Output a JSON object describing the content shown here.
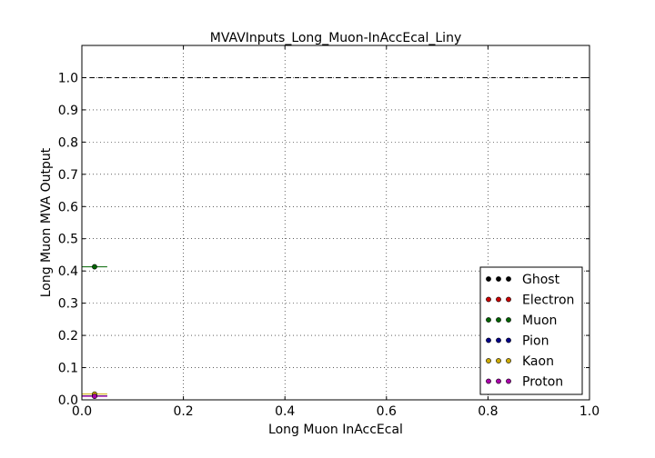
{
  "chart_data": {
    "type": "scatter",
    "title": "MVAVInputs_Long_Muon-InAccEcal_Liny",
    "xlabel": "Long Muon InAccEcal",
    "ylabel": "Long Muon MVA Output",
    "xlim": [
      0.0,
      1.0
    ],
    "ylim": [
      0.0,
      1.1
    ],
    "x_ticks": [
      "0.0",
      "0.2",
      "0.4",
      "0.6",
      "0.8",
      "1.0"
    ],
    "y_ticks": [
      "0.0",
      "0.1",
      "0.2",
      "0.3",
      "0.4",
      "0.5",
      "0.6",
      "0.7",
      "0.8",
      "0.9",
      "1.0"
    ],
    "grid": true,
    "reference_line": {
      "y": 1.0,
      "style": "dashed"
    },
    "legend_position": "lower-right",
    "series": [
      {
        "name": "Ghost",
        "color": "#000000",
        "points": []
      },
      {
        "name": "Electron",
        "color": "#cc0000",
        "points": [
          {
            "x": 0.025,
            "y": 0.012,
            "xerr": 0.025
          }
        ]
      },
      {
        "name": "Muon",
        "color": "#006400",
        "points": [
          {
            "x": 0.025,
            "y": 0.413,
            "xerr": 0.025
          }
        ]
      },
      {
        "name": "Pion",
        "color": "#00008b",
        "points": [
          {
            "x": 0.025,
            "y": 0.012,
            "xerr": 0.025
          }
        ]
      },
      {
        "name": "Kaon",
        "color": "#ccaa00",
        "points": [
          {
            "x": 0.025,
            "y": 0.018,
            "xerr": 0.025
          }
        ]
      },
      {
        "name": "Proton",
        "color": "#aa00aa",
        "points": [
          {
            "x": 0.025,
            "y": 0.011,
            "xerr": 0.025
          }
        ]
      }
    ]
  }
}
